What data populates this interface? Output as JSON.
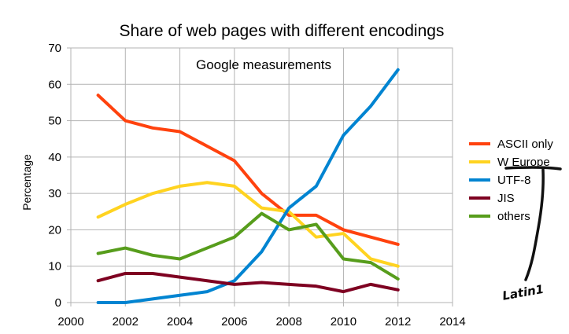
{
  "chart_data": {
    "type": "line",
    "title": "Share of web pages with different encodings",
    "annotation": "Google measurements",
    "xlabel": "",
    "ylabel": "Percentage",
    "xlim": [
      2000,
      2014
    ],
    "ylim": [
      0,
      70
    ],
    "xticks": [
      2000,
      2002,
      2004,
      2006,
      2008,
      2010,
      2012,
      2014
    ],
    "yticks": [
      0,
      10,
      20,
      30,
      40,
      50,
      60,
      70
    ],
    "grid": true,
    "legend_position": "right",
    "x": [
      2001,
      2002,
      2003,
      2004,
      2005,
      2006,
      2007,
      2008,
      2009,
      2010,
      2011,
      2012
    ],
    "series": [
      {
        "name": "ASCII only",
        "color": "#ff420e",
        "values": [
          57,
          50,
          48,
          47,
          43,
          39,
          30,
          24,
          24,
          20,
          18,
          16
        ]
      },
      {
        "name": "W Europe",
        "color": "#ffd320",
        "values": [
          23.5,
          27,
          30,
          32,
          33,
          32,
          26,
          25,
          18,
          19,
          12,
          10
        ]
      },
      {
        "name": "UTF-8",
        "color": "#0084d1",
        "values": [
          0,
          0,
          1,
          2,
          3,
          6,
          14,
          26,
          32,
          46,
          54,
          64
        ]
      },
      {
        "name": "JIS",
        "color": "#7e0021",
        "values": [
          6,
          8,
          8,
          7,
          6,
          5,
          5.5,
          5,
          4.5,
          3,
          5,
          3.5
        ]
      },
      {
        "name": "others",
        "color": "#579d1c",
        "values": [
          13.5,
          15,
          13,
          12,
          15,
          18,
          24.5,
          20,
          21.5,
          12,
          11,
          6.5
        ]
      }
    ]
  },
  "handwritten_note": "Latin1"
}
